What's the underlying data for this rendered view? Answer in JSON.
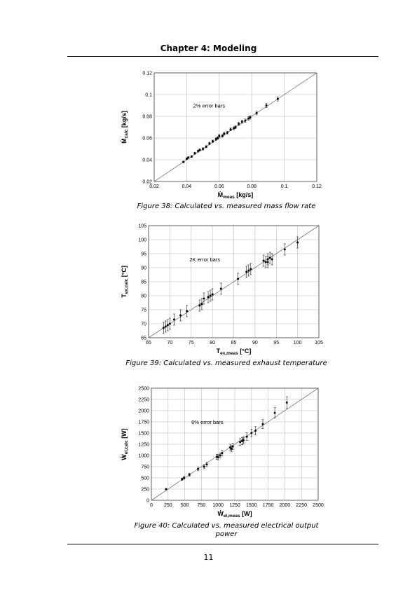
{
  "header": {
    "title": "Chapter 4: Modeling"
  },
  "page_number": "11",
  "figures": [
    {
      "caption": "Figure 38: Calculated vs. measured mass flow rate"
    },
    {
      "caption": "Figure 39: Calculated vs. measured exhaust temperature"
    },
    {
      "caption": "Figure 40: Calculated vs. measured electrical output power"
    }
  ],
  "chart_data": [
    {
      "type": "scatter",
      "xlabel_main": "Ṁ",
      "xlabel_sub": "meas",
      "xlabel_unit": " [kg/s]",
      "ylabel_main": "Ṁ",
      "ylabel_sub": "calc",
      "ylabel_unit": " [kg/s]",
      "annotation": "2% error bars",
      "xlim": [
        0.02,
        0.12
      ],
      "ylim": [
        0.02,
        0.12
      ],
      "xticks": [
        0.02,
        0.04,
        0.06,
        0.08,
        0.1,
        0.12
      ],
      "yticks": [
        0.02,
        0.04,
        0.06,
        0.08,
        0.1,
        0.12
      ],
      "tick_labels_x": [
        "0.02",
        "0.04",
        "0.06",
        "0.08",
        "0.1",
        "0.12"
      ],
      "tick_labels_y": [
        "0.02",
        "0.04",
        "0.06",
        "0.08",
        "0.1",
        "0.12"
      ],
      "grid": true,
      "reference_line": "y=x",
      "error_pct": 2,
      "points": [
        [
          0.038,
          0.038
        ],
        [
          0.04,
          0.041
        ],
        [
          0.041,
          0.042
        ],
        [
          0.043,
          0.043
        ],
        [
          0.045,
          0.046
        ],
        [
          0.047,
          0.048
        ],
        [
          0.048,
          0.049
        ],
        [
          0.05,
          0.05
        ],
        [
          0.052,
          0.052
        ],
        [
          0.054,
          0.055
        ],
        [
          0.056,
          0.057
        ],
        [
          0.058,
          0.059
        ],
        [
          0.059,
          0.06
        ],
        [
          0.06,
          0.062
        ],
        [
          0.062,
          0.062
        ],
        [
          0.063,
          0.064
        ],
        [
          0.065,
          0.065
        ],
        [
          0.067,
          0.068
        ],
        [
          0.069,
          0.069
        ],
        [
          0.07,
          0.07
        ],
        [
          0.072,
          0.073
        ],
        [
          0.074,
          0.075
        ],
        [
          0.076,
          0.076
        ],
        [
          0.078,
          0.078
        ],
        [
          0.079,
          0.079
        ],
        [
          0.083,
          0.083
        ],
        [
          0.089,
          0.09
        ],
        [
          0.096,
          0.096
        ]
      ]
    },
    {
      "type": "scatter",
      "xlabel_main": "T",
      "xlabel_sub": "ex,meas",
      "xlabel_unit": " [°C]",
      "ylabel_main": "T",
      "ylabel_sub": "ex,calc",
      "ylabel_unit": " [°C]",
      "annotation": "2K error bars",
      "xlim": [
        65,
        105
      ],
      "ylim": [
        65,
        105
      ],
      "xticks": [
        65,
        70,
        75,
        80,
        85,
        90,
        95,
        100,
        105
      ],
      "yticks": [
        65,
        70,
        75,
        80,
        85,
        90,
        95,
        100,
        105
      ],
      "tick_labels_x": [
        "65",
        "70",
        "75",
        "80",
        "85",
        "90",
        "95",
        "100",
        "105"
      ],
      "tick_labels_y": [
        "65",
        "70",
        "75",
        "80",
        "85",
        "90",
        "95",
        "100",
        "105"
      ],
      "grid": true,
      "reference_line": "y=x",
      "error_abs": 2,
      "points": [
        [
          68.5,
          68.5
        ],
        [
          69,
          69
        ],
        [
          69.5,
          69.5
        ],
        [
          70,
          70
        ],
        [
          71,
          71.5
        ],
        [
          72.5,
          73
        ],
        [
          74,
          74.5
        ],
        [
          77,
          76.5
        ],
        [
          77.5,
          77
        ],
        [
          78,
          79
        ],
        [
          79,
          79.5
        ],
        [
          79.5,
          80
        ],
        [
          80,
          80.5
        ],
        [
          82,
          82.5
        ],
        [
          86,
          86
        ],
        [
          88,
          88.5
        ],
        [
          88.5,
          89
        ],
        [
          89,
          89.5
        ],
        [
          92,
          92.5
        ],
        [
          92.5,
          92
        ],
        [
          93,
          93
        ],
        [
          93.5,
          93.5
        ],
        [
          93,
          92
        ],
        [
          94,
          93
        ],
        [
          97,
          96.5
        ],
        [
          100,
          99
        ]
      ]
    },
    {
      "type": "scatter",
      "xlabel_main": "Ẇ",
      "xlabel_sub": "el,meas",
      "xlabel_unit": " [W]",
      "ylabel_main": "Ẇ",
      "ylabel_sub": "el,calc",
      "ylabel_unit": " [W]",
      "annotation": "6% error bars",
      "xlim": [
        0,
        2500
      ],
      "ylim": [
        0,
        2500
      ],
      "xticks": [
        0,
        250,
        500,
        750,
        1000,
        1250,
        1500,
        1750,
        2000,
        2250,
        2500
      ],
      "yticks": [
        0,
        250,
        500,
        750,
        1000,
        1250,
        1500,
        1750,
        2000,
        2250,
        2500
      ],
      "tick_labels_x": [
        "0",
        "250",
        "500",
        "750",
        "1000",
        "1250",
        "1500",
        "1750",
        "2000",
        "2250",
        "2500"
      ],
      "tick_labels_y": [
        "0",
        "250",
        "500",
        "750",
        "1000",
        "1250",
        "1500",
        "1750",
        "2000",
        "2250",
        "2500"
      ],
      "grid": true,
      "reference_line": "y=x",
      "error_pct": 6,
      "points": [
        [
          220,
          250
        ],
        [
          460,
          470
        ],
        [
          490,
          500
        ],
        [
          570,
          570
        ],
        [
          700,
          700
        ],
        [
          790,
          750
        ],
        [
          830,
          800
        ],
        [
          980,
          970
        ],
        [
          1000,
          960
        ],
        [
          1030,
          1000
        ],
        [
          1060,
          1050
        ],
        [
          1180,
          1180
        ],
        [
          1200,
          1150
        ],
        [
          1220,
          1200
        ],
        [
          1330,
          1300
        ],
        [
          1360,
          1320
        ],
        [
          1380,
          1340
        ],
        [
          1430,
          1420
        ],
        [
          1500,
          1500
        ],
        [
          1560,
          1550
        ],
        [
          1670,
          1700
        ],
        [
          1850,
          1950
        ],
        [
          2030,
          2180
        ]
      ]
    }
  ]
}
